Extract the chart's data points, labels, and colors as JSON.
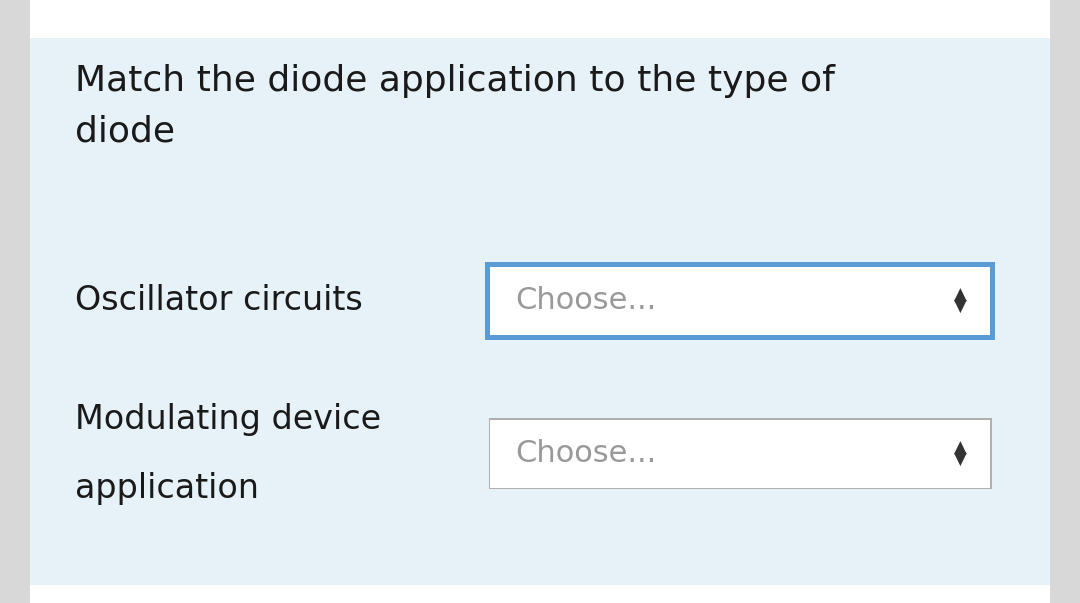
{
  "title_line1": "Match the diode application to the type of",
  "title_line2": "diode",
  "row1_label": "Oscillator circuits",
  "row2_label_line1": "Modulating device",
  "row2_label_line2": "application",
  "dropdown_text": "Choose...",
  "bg_outer": "#d8d8d8",
  "bg_main": "#e6f2f7",
  "bg_white_top": "#ffffff",
  "bg_white_bottom": "#ffffff",
  "dropdown_bg": "#ffffff",
  "dropdown1_border_color": "#5b9bd5",
  "dropdown2_border_color": "#b0b0b0",
  "text_color": "#1a1a1a",
  "dropdown_text_color": "#999999",
  "arrow_color": "#333333",
  "title_fontsize": 26,
  "label_fontsize": 24,
  "dropdown_fontsize": 22,
  "arrow_fontsize": 14
}
